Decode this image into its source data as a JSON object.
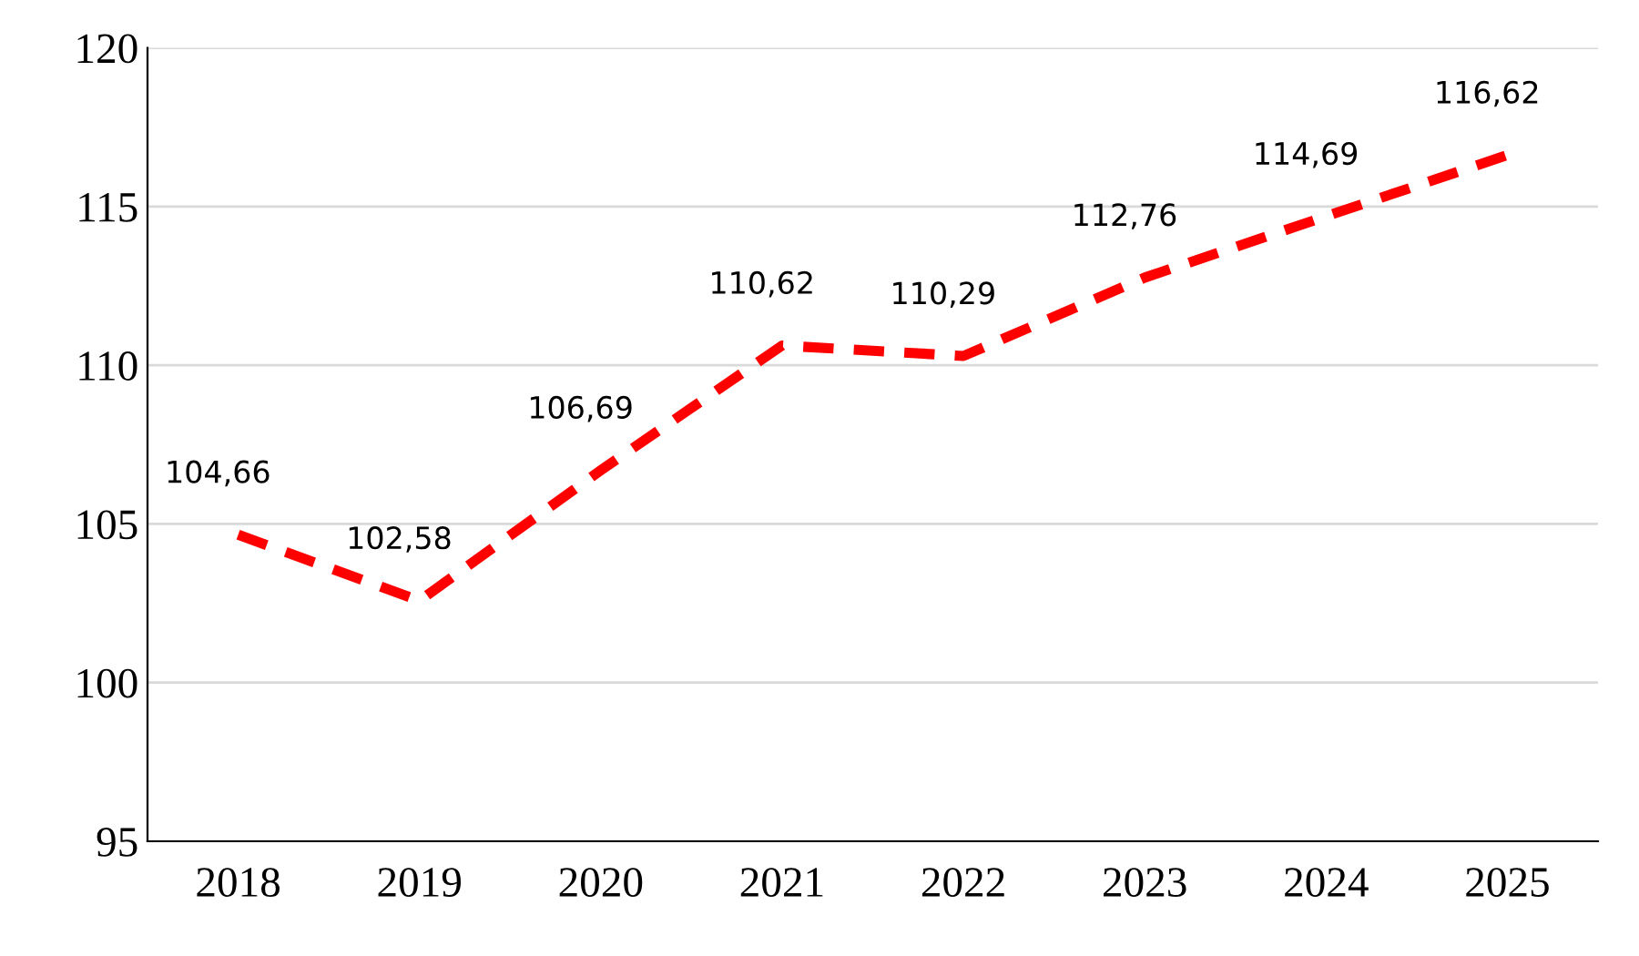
{
  "chart_data": {
    "type": "line",
    "categories": [
      "2018",
      "2019",
      "2020",
      "2021",
      "2022",
      "2023",
      "2024",
      "2025"
    ],
    "series": [
      {
        "color": "#ff0000",
        "values": [
          104.66,
          102.58,
          106.69,
          110.62,
          110.29,
          112.76,
          114.69,
          116.62
        ],
        "value_labels": [
          "104,66",
          "102,58",
          "106,69",
          "110,62",
          "110,29",
          "112,76",
          "114,69",
          "116,62"
        ]
      }
    ],
    "ylim": [
      95,
      120
    ],
    "yticks": [
      95,
      100,
      105,
      110,
      115,
      120
    ],
    "grid": "y",
    "line_style": "dashed",
    "marker": "none",
    "legend": false
  }
}
